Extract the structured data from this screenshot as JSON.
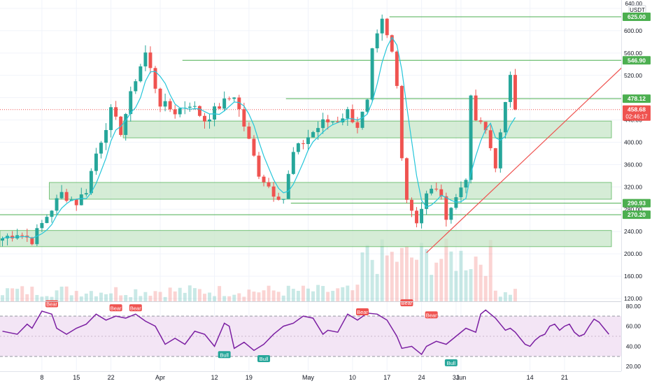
{
  "chart_data": {
    "type": "candlestick",
    "quote_unit": "USDT",
    "top_tick": "640.00",
    "price_axis": {
      "ylim": [
        115,
        655
      ],
      "ticks": [
        120,
        160,
        200,
        240,
        280,
        320,
        360,
        400,
        440,
        480,
        520,
        560,
        600,
        640
      ]
    },
    "x_axis": {
      "tick_labels": [
        {
          "label": "8",
          "bar": 8
        },
        {
          "label": "15",
          "bar": 15
        },
        {
          "label": "22",
          "bar": 22
        },
        {
          "label": "Apr",
          "bar": 32
        },
        {
          "label": "12",
          "bar": 43
        },
        {
          "label": "19",
          "bar": 50
        },
        {
          "label": "May",
          "bar": 62
        },
        {
          "label": "10",
          "bar": 71
        },
        {
          "label": "17",
          "bar": 78
        },
        {
          "label": "24",
          "bar": 85
        },
        {
          "label": "31",
          "bar": 92
        },
        {
          "label": "Jun",
          "bar": 93
        },
        {
          "label": "14",
          "bar": 107
        },
        {
          "label": "21",
          "bar": 114
        }
      ],
      "bar_count": 126
    },
    "price_path": [
      [
        0,
        228
      ],
      [
        3,
        238
      ],
      [
        6,
        225
      ],
      [
        9,
        268
      ],
      [
        12,
        308
      ],
      [
        15,
        292
      ],
      [
        17,
        315
      ],
      [
        19,
        380
      ],
      [
        22,
        455
      ],
      [
        24,
        420
      ],
      [
        27,
        515
      ],
      [
        29,
        560
      ],
      [
        32,
        470
      ],
      [
        35,
        455
      ],
      [
        38,
        470
      ],
      [
        41,
        440
      ],
      [
        44,
        465
      ],
      [
        47,
        485
      ],
      [
        49,
        430
      ],
      [
        52,
        345
      ],
      [
        55,
        310
      ],
      [
        57,
        300
      ],
      [
        59,
        380
      ],
      [
        62,
        410
      ],
      [
        65,
        435
      ],
      [
        68,
        440
      ],
      [
        70,
        455
      ],
      [
        72,
        430
      ],
      [
        74,
        470
      ],
      [
        75,
        560
      ],
      [
        77,
        615
      ],
      [
        79,
        560
      ],
      [
        80,
        500
      ],
      [
        81,
        380
      ],
      [
        82,
        300
      ],
      [
        84,
        260
      ],
      [
        86,
        305
      ],
      [
        88,
        320
      ],
      [
        90,
        270
      ],
      [
        92,
        300
      ],
      [
        94,
        340
      ],
      [
        95,
        475
      ],
      [
        96,
        440
      ],
      [
        98,
        420
      ],
      [
        100,
        360
      ],
      [
        102,
        465
      ],
      [
        103,
        525
      ],
      [
        104,
        458.68
      ]
    ],
    "price_labels": [
      {
        "value": "625.00",
        "price": 625,
        "kind": "level"
      },
      {
        "value": "546.90",
        "price": 546.9,
        "kind": "level"
      },
      {
        "value": "478.12",
        "price": 478.12,
        "kind": "level"
      },
      {
        "value": "458.68",
        "price": 458.68,
        "kind": "last",
        "countdown": "02:46:17"
      },
      {
        "value": "290.93",
        "price": 290.93,
        "kind": "level"
      },
      {
        "value": "270.20",
        "price": 270.2,
        "kind": "level"
      }
    ],
    "horizontal_levels": [
      {
        "price": 625,
        "from_bar": 79
      },
      {
        "price": 546.9,
        "from_bar": 37
      },
      {
        "price": 478.12,
        "from_bar": 58
      },
      {
        "price": 290.93,
        "from_bar": 59
      },
      {
        "price": 270.2,
        "from_bar": 0
      }
    ],
    "zones": [
      {
        "low": 408,
        "high": 438,
        "from_bar": 25
      },
      {
        "low": 298,
        "high": 328,
        "from_bar": 10
      },
      {
        "low": 213,
        "high": 242,
        "from_bar": 0
      }
    ],
    "trendline": {
      "from": [
        86,
        202
      ],
      "to": [
        126,
        537
      ]
    },
    "rsi": {
      "ylim": [
        16,
        84
      ],
      "ticks": [
        20,
        40,
        60,
        80
      ],
      "band": [
        30,
        70
      ],
      "midline": 50,
      "path": [
        [
          0,
          55
        ],
        [
          3,
          52
        ],
        [
          5,
          62
        ],
        [
          6,
          58
        ],
        [
          8,
          75
        ],
        [
          10,
          72
        ],
        [
          11,
          58
        ],
        [
          13,
          52
        ],
        [
          15,
          58
        ],
        [
          17,
          62
        ],
        [
          19,
          72
        ],
        [
          21,
          66
        ],
        [
          23,
          70
        ],
        [
          25,
          68
        ],
        [
          27,
          72
        ],
        [
          29,
          65
        ],
        [
          31,
          60
        ],
        [
          33,
          42
        ],
        [
          35,
          48
        ],
        [
          37,
          42
        ],
        [
          39,
          55
        ],
        [
          41,
          52
        ],
        [
          43,
          40
        ],
        [
          45,
          63
        ],
        [
          46,
          60
        ],
        [
          47,
          38
        ],
        [
          49,
          44
        ],
        [
          51,
          36
        ],
        [
          53,
          42
        ],
        [
          55,
          52
        ],
        [
          57,
          60
        ],
        [
          59,
          63
        ],
        [
          61,
          70
        ],
        [
          63,
          68
        ],
        [
          65,
          52
        ],
        [
          66,
          56
        ],
        [
          68,
          54
        ],
        [
          70,
          72
        ],
        [
          72,
          66
        ],
        [
          74,
          73
        ],
        [
          76,
          72
        ],
        [
          78,
          66
        ],
        [
          79,
          58
        ],
        [
          80,
          50
        ],
        [
          81,
          38
        ],
        [
          83,
          40
        ],
        [
          85,
          32
        ],
        [
          86,
          40
        ],
        [
          88,
          45
        ],
        [
          90,
          42
        ],
        [
          92,
          50
        ],
        [
          94,
          58
        ],
        [
          96,
          54
        ],
        [
          97,
          72
        ],
        [
          98,
          76
        ],
        [
          100,
          68
        ],
        [
          101,
          62
        ],
        [
          102,
          56
        ],
        [
          103,
          58
        ],
        [
          104,
          54
        ],
        [
          105,
          48
        ],
        [
          106,
          42
        ],
        [
          107,
          40
        ],
        [
          108,
          46
        ],
        [
          109,
          50
        ],
        [
          110,
          52
        ],
        [
          111,
          60
        ],
        [
          112,
          62
        ],
        [
          113,
          56
        ],
        [
          114,
          60
        ],
        [
          115,
          62
        ],
        [
          116,
          54
        ],
        [
          117,
          50
        ],
        [
          118,
          52
        ],
        [
          119,
          60
        ],
        [
          120,
          67
        ],
        [
          121,
          64
        ],
        [
          122,
          58
        ],
        [
          123,
          52
        ]
      ],
      "divergences": [
        {
          "label": "Bear",
          "kind": "bear",
          "bar": 10,
          "value": 76
        },
        {
          "label": "Bear",
          "kind": "bear",
          "bar": 23,
          "value": 72
        },
        {
          "label": "Bear",
          "kind": "bear",
          "bar": 27,
          "value": 72
        },
        {
          "label": "Bull",
          "kind": "bull",
          "bar": 45,
          "value": 38
        },
        {
          "label": "Bull",
          "kind": "bull",
          "bar": 53,
          "value": 34
        },
        {
          "label": "Bear",
          "kind": "bear",
          "bar": 73,
          "value": 68
        },
        {
          "label": "Bear",
          "kind": "bear",
          "bar": 82,
          "value": 77
        },
        {
          "label": "Bear",
          "kind": "bear",
          "bar": 87,
          "value": 65
        },
        {
          "label": "Bull",
          "kind": "bull",
          "bar": 91,
          "value": 30
        }
      ]
    },
    "colors": {
      "up": "#26a69a",
      "down": "#ef5350",
      "level": "#4caf50",
      "zone": "#c8e6c9",
      "trendline": "#ef5350",
      "rsi": "#7b1fa2",
      "rsi_band": "#f3e5f5",
      "ma": "#26c6da",
      "label_text": "#ffffff",
      "axis_text": "#131722",
      "grid": "#f0f3fa"
    }
  }
}
